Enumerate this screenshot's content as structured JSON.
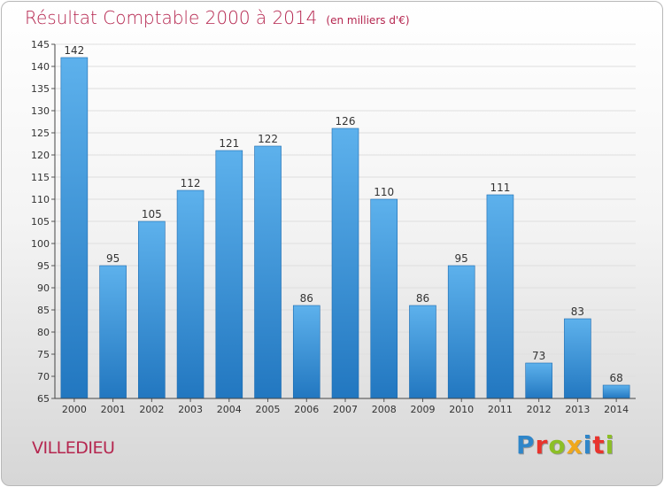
{
  "chart_data": {
    "type": "bar",
    "title": "Résultat Comptable 2000 à 2014",
    "subtitle": "(en milliers d'€)",
    "categories": [
      "2000",
      "2001",
      "2002",
      "2003",
      "2004",
      "2005",
      "2006",
      "2007",
      "2008",
      "2009",
      "2010",
      "2011",
      "2012",
      "2013",
      "2014"
    ],
    "values": [
      142,
      95,
      105,
      112,
      121,
      122,
      86,
      126,
      110,
      86,
      95,
      111,
      73,
      83,
      68
    ],
    "ylim": [
      65,
      145
    ],
    "yticks": [
      65,
      70,
      75,
      80,
      85,
      90,
      95,
      100,
      105,
      110,
      115,
      120,
      125,
      130,
      135,
      140,
      145
    ],
    "grid": true,
    "bar_color": "#3d8fd6"
  },
  "footer": {
    "commune": "VILLEDIEU",
    "logo": "Proxiti",
    "logo_colors": [
      "#2f86c9",
      "#e8342d",
      "#8cbf26",
      "#f0a81c",
      "#2f86c9",
      "#e8342d",
      "#8cbf26"
    ]
  }
}
